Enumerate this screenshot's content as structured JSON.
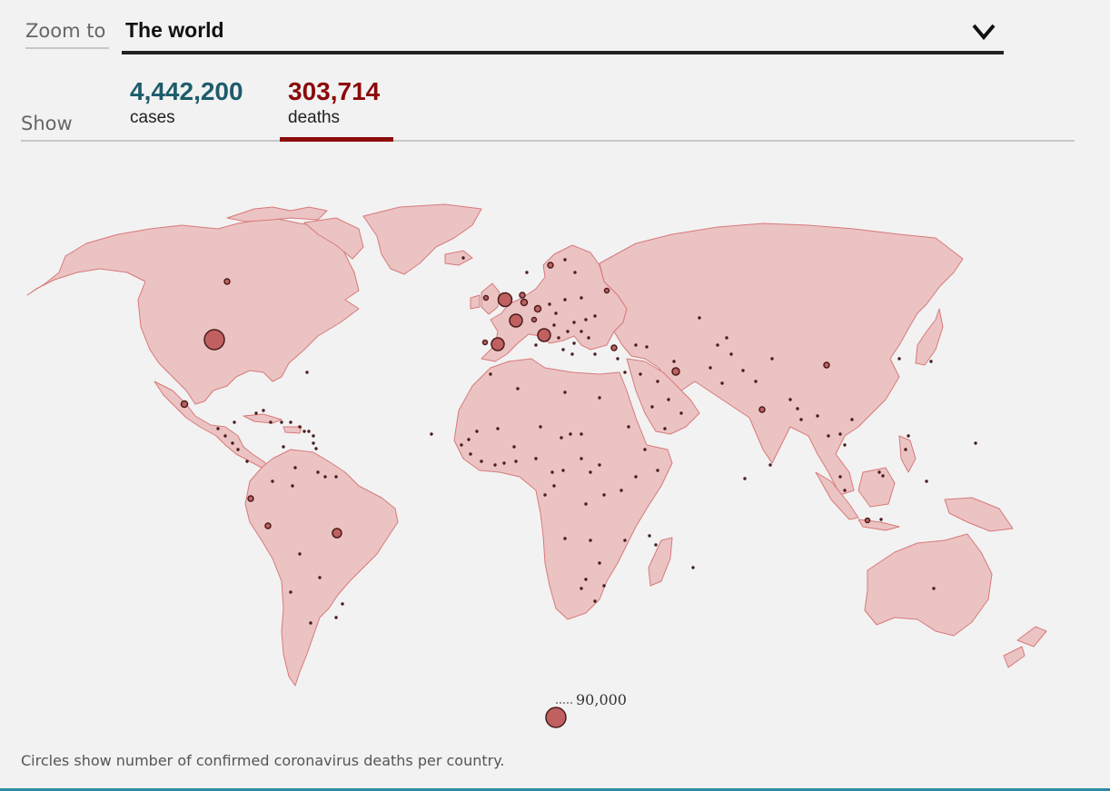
{
  "zoom": {
    "label": "Zoom to",
    "selected": "The world",
    "chevron_icon": "chevron-down-icon"
  },
  "show": {
    "label": "Show",
    "cases": {
      "value": "4,442,200",
      "label": "cases",
      "color": "#1d5c6b"
    },
    "deaths": {
      "value": "303,714",
      "label": "deaths",
      "color": "#8b0a0a",
      "active": true
    }
  },
  "map": {
    "land_color": "#ebc3c3",
    "border_color": "#d9797a",
    "circle_fill": "#c06060",
    "circle_stroke": "#4a1c1c"
  },
  "legend": {
    "value": "90,000"
  },
  "footnote": "Circles show number of confirmed coronavirus deaths per country."
}
